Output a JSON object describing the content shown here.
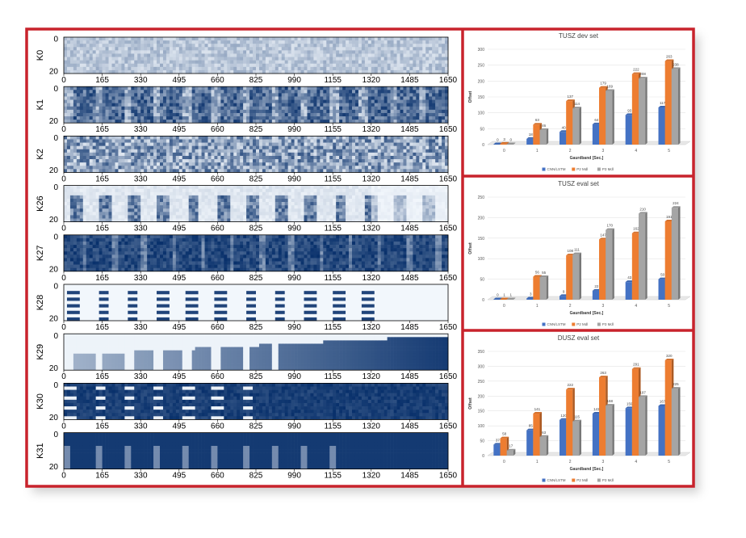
{
  "frame": {
    "border_color": "#c8232c"
  },
  "left_panel": {
    "x_ticks": [
      "0",
      "165",
      "330",
      "495",
      "660",
      "825",
      "990",
      "1155",
      "1320",
      "1485",
      "1650"
    ],
    "y_ticks": [
      "0",
      "20"
    ],
    "rows": [
      {
        "label": "K0",
        "style": "noise_light"
      },
      {
        "label": "K1",
        "style": "noise_bands"
      },
      {
        "label": "K2",
        "style": "noise_mixed"
      },
      {
        "label": "K26",
        "style": "pulse_light"
      },
      {
        "label": "K27",
        "style": "pulse_dark"
      },
      {
        "label": "K28",
        "style": "sparse_ticks"
      },
      {
        "label": "K29",
        "style": "growing_bars"
      },
      {
        "label": "K30",
        "style": "dark_stripes"
      },
      {
        "label": "K31",
        "style": "dark_fill"
      }
    ]
  },
  "chart_data": [
    {
      "type": "bar",
      "title": "TUSZ dev set",
      "xlabel": "Gaurdband [Sec.]",
      "ylabel": "Offset",
      "categories": [
        "0",
        "1",
        "2",
        "3",
        "4",
        "5"
      ],
      "yticks": [
        "0",
        "50",
        "100",
        "150",
        "200",
        "250",
        "300"
      ],
      "ylim": [
        0,
        300
      ],
      "series": [
        {
          "name": "CNN/LSTM",
          "color": "#4472c4",
          "values": [
            0,
            18,
            40,
            64,
            93,
            117
          ]
        },
        {
          "name": "P2 Mdl",
          "color": "#ed7d31",
          "values": [
            3,
            63,
            137,
            179,
            222,
            263
          ]
        },
        {
          "name": "P3 Mdl",
          "color": "#a5a5a5",
          "values": [
            0,
            46,
            114,
            169,
            208,
            238
          ]
        }
      ],
      "data_labels": [
        [
          "0",
          "18",
          "40",
          "64",
          "93",
          "117"
        ],
        [
          "3",
          "63",
          "137",
          "179",
          "222",
          "263"
        ],
        [
          "0",
          "46",
          "114",
          "169",
          "208",
          "238"
        ]
      ],
      "legend_placement": "bottom"
    },
    {
      "type": "bar",
      "title": "TUSZ eval set",
      "xlabel": "Gaurdband [Sec.]",
      "ylabel": "Offset",
      "categories": [
        "0",
        "1",
        "2",
        "3",
        "4",
        "5"
      ],
      "yticks": [
        "0",
        "50",
        "100",
        "150",
        "200",
        "250"
      ],
      "ylim": [
        0,
        250
      ],
      "series": [
        {
          "name": "CNN/LSTM",
          "color": "#4472c4",
          "values": [
            0,
            3,
            9,
            22,
            43,
            50
          ]
        },
        {
          "name": "P2 Mdl",
          "color": "#ed7d31",
          "values": [
            1,
            56,
            108,
            147,
            162,
            191
          ]
        },
        {
          "name": "P3 Mdl",
          "color": "#a5a5a5",
          "values": [
            1,
            55,
            111,
            170,
            210,
            224
          ]
        }
      ],
      "data_labels": [
        [
          "0",
          "3",
          "9",
          "22",
          "43",
          "50"
        ],
        [
          "1",
          "56",
          "108",
          "147",
          "162",
          "191"
        ],
        [
          "1",
          "55",
          "111",
          "170",
          "210",
          "224"
        ]
      ],
      "legend_placement": "bottom"
    },
    {
      "type": "bar",
      "title": "DUSZ eval set",
      "xlabel": "Gaurdband [Sec.]",
      "ylabel": "Offset",
      "categories": [
        "0",
        "1",
        "2",
        "3",
        "4",
        "5"
      ],
      "yticks": [
        "0",
        "50",
        "100",
        "150",
        "200",
        "250",
        "300",
        "350"
      ],
      "ylim": [
        0,
        350
      ],
      "series": [
        {
          "name": "CNN/LSTM",
          "color": "#4472c4",
          "values": [
            37,
            85,
            120,
            141,
            159,
            167
          ]
        },
        {
          "name": "P2 Mdl",
          "color": "#ed7d31",
          "values": [
            58,
            141,
            222,
            263,
            291,
            320
          ]
        },
        {
          "name": "P3 Mdl",
          "color": "#a5a5a5",
          "values": [
            17,
            63,
            115,
            168,
            197,
            225
          ]
        }
      ],
      "data_labels": [
        [
          "37",
          "85",
          "120",
          "141",
          "159",
          "167"
        ],
        [
          "58",
          "141",
          "222",
          "263",
          "291",
          "320"
        ],
        [
          "17",
          "63",
          "115",
          "168",
          "197",
          "225"
        ]
      ],
      "legend_placement": "bottom"
    }
  ]
}
